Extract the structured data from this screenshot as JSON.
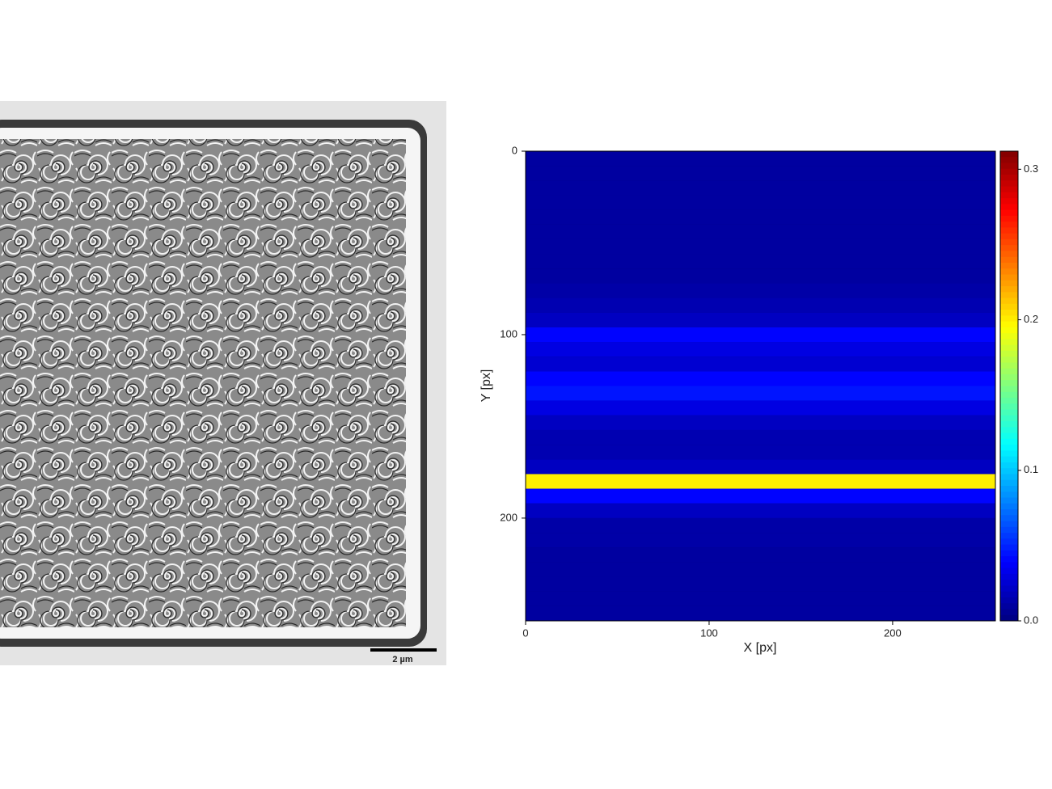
{
  "scale_bar_label": "2 µm",
  "chart_data": {
    "type": "heatmap",
    "xlabel": "X [px]",
    "ylabel": "Y [px]",
    "xlim": [
      0,
      256
    ],
    "xticks": [
      0,
      100,
      200
    ],
    "ylim": [
      0,
      256
    ],
    "yticks": [
      0,
      100,
      200
    ],
    "y_inverted": true,
    "ybins": [
      0,
      8,
      16,
      24,
      32,
      40,
      48,
      56,
      64,
      72,
      80,
      88,
      96,
      104,
      112,
      120,
      128,
      136,
      144,
      152,
      160,
      168,
      176,
      184,
      192,
      200,
      208,
      216,
      224,
      232,
      240,
      248,
      256
    ],
    "values": [
      0.01,
      0.01,
      0.01,
      0.01,
      0.01,
      0.01,
      0.01,
      0.01,
      0.01,
      0.012,
      0.015,
      0.02,
      0.04,
      0.03,
      0.025,
      0.04,
      0.045,
      0.03,
      0.02,
      0.015,
      0.015,
      0.02,
      0.2,
      0.04,
      0.02,
      0.012,
      0.012,
      0.01,
      0.01,
      0.01,
      0.01,
      0.01
    ],
    "colormap": "jet",
    "zlim": [
      0,
      0.312
    ],
    "zticks": [
      {
        "value": 0,
        "label": "0.0"
      },
      0.1,
      0.2,
      0.3
    ]
  }
}
